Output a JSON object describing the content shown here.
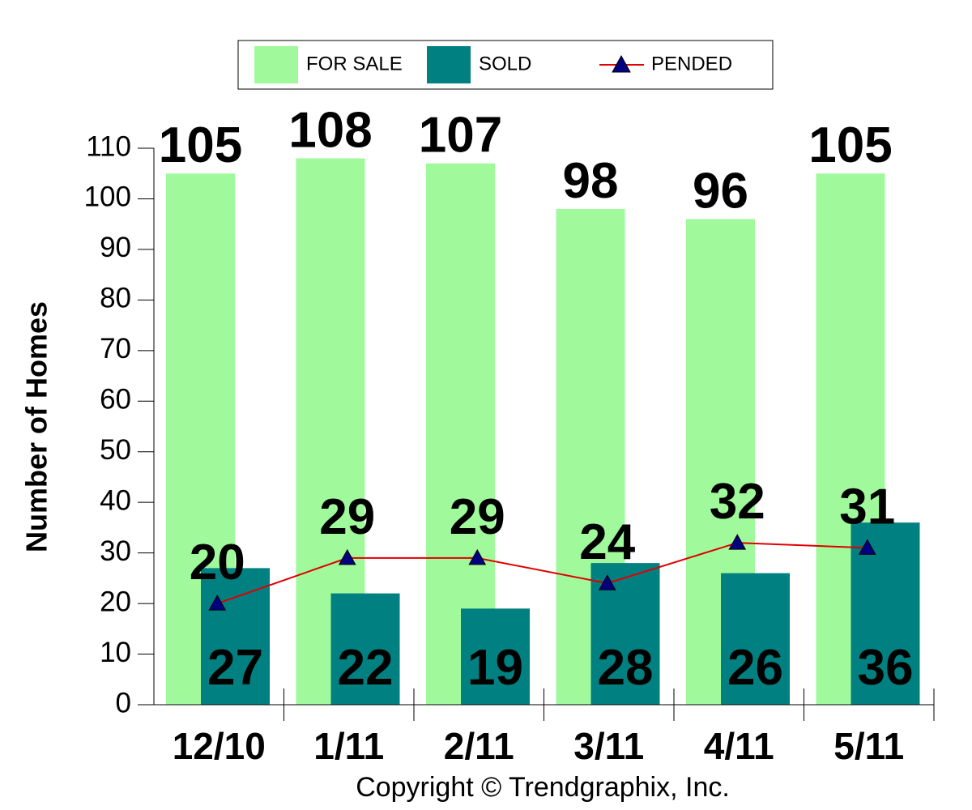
{
  "chart_data": {
    "type": "bar",
    "ylabel": "Number of Homes",
    "footer": "Copyright © Trendgraphix, Inc.",
    "categories": [
      "12/10",
      "1/11",
      "2/11",
      "3/11",
      "4/11",
      "5/11"
    ],
    "series": [
      {
        "name": "FOR SALE",
        "type": "bar",
        "color": "#a0fa9c",
        "values": [
          105,
          108,
          107,
          98,
          96,
          105
        ]
      },
      {
        "name": "SOLD",
        "type": "bar",
        "color": "#008080",
        "values": [
          27,
          22,
          19,
          28,
          26,
          36
        ]
      },
      {
        "name": "PENDED",
        "type": "line",
        "color": "#e00000",
        "marker_color": "#000080",
        "values": [
          20,
          29,
          29,
          24,
          32,
          31
        ]
      }
    ],
    "ylim": [
      0,
      110
    ],
    "yticks": [
      0,
      10,
      20,
      30,
      40,
      50,
      60,
      70,
      80,
      90,
      100,
      110
    ],
    "legend": "top"
  }
}
